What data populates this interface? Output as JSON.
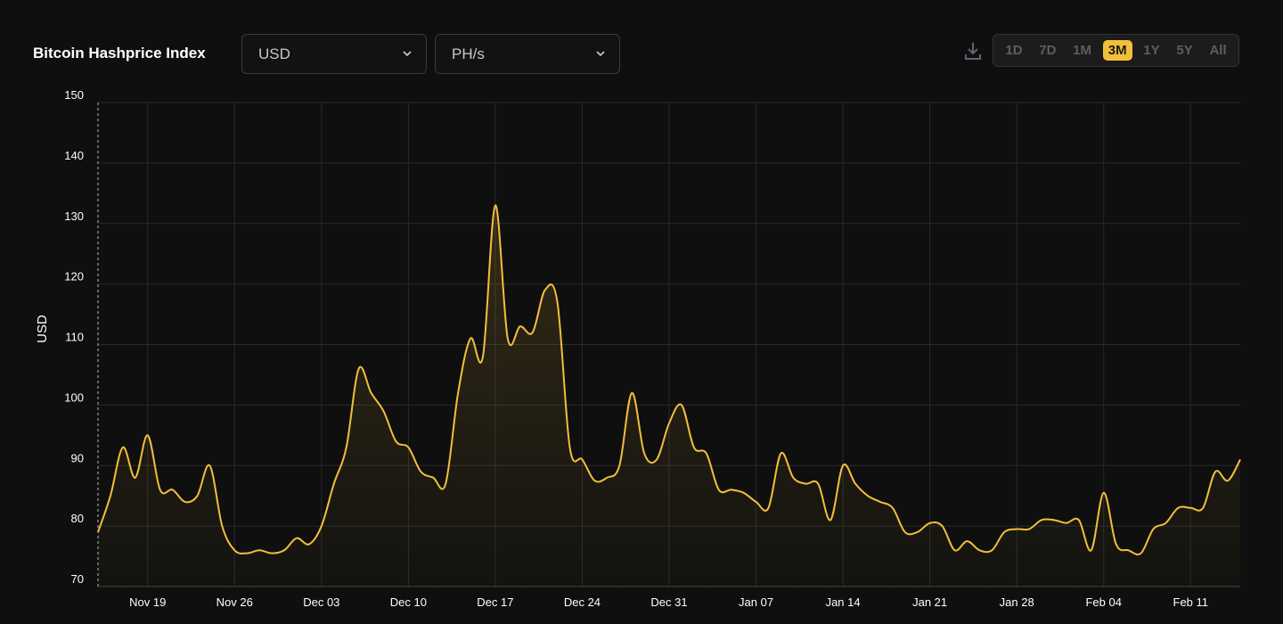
{
  "header": {
    "title": "Bitcoin Hashprice Index"
  },
  "controls": {
    "currency": "USD",
    "unit": "PH/s",
    "ranges": [
      "1D",
      "7D",
      "1M",
      "3M",
      "1Y",
      "5Y",
      "All"
    ],
    "selected_range": 3
  },
  "chart_data": {
    "type": "line",
    "y_label": "USD",
    "color": "#f2bf3a",
    "grid": true,
    "categories": [
      null,
      null,
      null,
      null,
      "Nov 19",
      null,
      null,
      null,
      null,
      null,
      null,
      "Nov 26",
      null,
      null,
      null,
      null,
      null,
      null,
      "Dec 03",
      null,
      null,
      null,
      null,
      null,
      null,
      "Dec 10",
      null,
      null,
      null,
      null,
      null,
      null,
      "Dec 17",
      null,
      null,
      null,
      null,
      null,
      null,
      "Dec 24",
      null,
      null,
      null,
      null,
      null,
      null,
      "Dec 31",
      null,
      null,
      null,
      null,
      null,
      null,
      "Jan 07",
      null,
      null,
      null,
      null,
      null,
      null,
      "Jan 14",
      null,
      null,
      null,
      null,
      null,
      null,
      "Jan 21",
      null,
      null,
      null,
      null,
      null,
      null,
      "Jan 28",
      null,
      null,
      null,
      null,
      null,
      null,
      "Feb 04",
      null,
      null,
      null,
      null,
      null,
      null,
      "Feb 11",
      null,
      null,
      null,
      null
    ],
    "values": [
      79,
      85,
      93,
      88,
      95,
      86,
      86,
      84,
      85,
      90,
      80,
      76,
      75.5,
      76,
      75.5,
      76,
      78,
      77,
      80,
      87,
      93,
      106,
      102,
      99,
      94,
      93,
      89,
      88,
      87,
      102,
      111,
      108,
      133,
      111,
      113,
      112,
      119,
      117,
      93,
      91,
      87.5,
      88,
      90,
      102,
      92,
      91,
      97,
      100,
      93,
      92,
      86,
      86,
      85.5,
      84,
      83,
      92,
      88,
      87,
      87,
      81,
      90,
      87,
      85,
      84,
      83,
      79,
      79,
      80.5,
      80,
      76,
      77.5,
      76,
      76,
      79,
      79.5,
      79.5,
      81,
      81,
      80.5,
      81,
      76,
      85.5,
      77,
      76,
      75.5,
      79.5,
      80.5,
      83,
      83,
      83,
      89,
      87.5,
      91
    ],
    "ylim": [
      70,
      150
    ],
    "yticks": [
      70,
      80,
      90,
      100,
      110,
      120,
      130,
      140,
      150
    ]
  }
}
